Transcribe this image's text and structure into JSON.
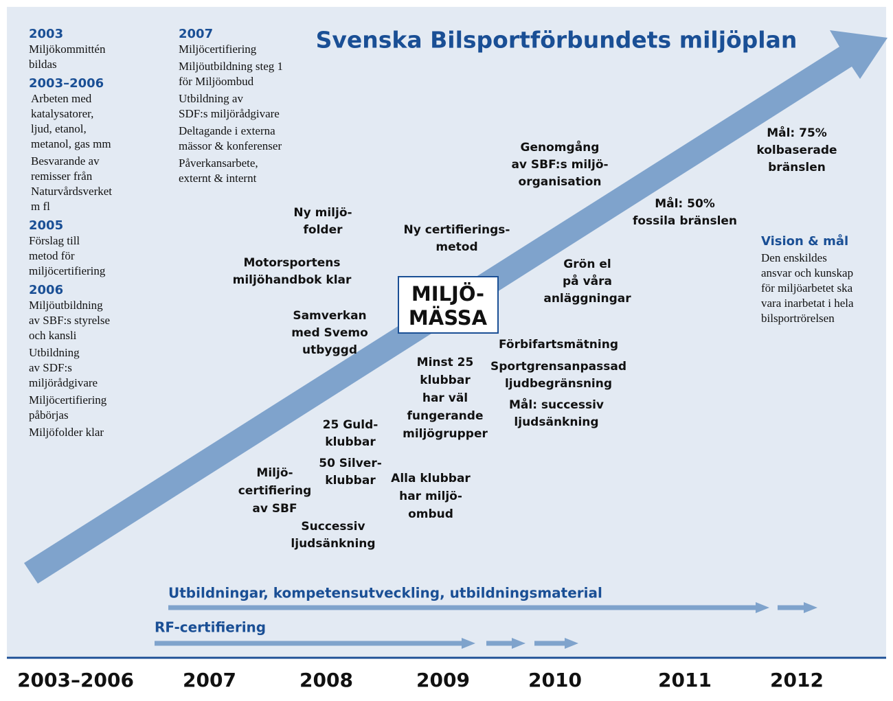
{
  "title": "Svenska Bilsportförbundets miljöplan",
  "left_column": [
    {
      "heading": "2003",
      "items": [
        [
          "Miljökommittén",
          "bildas"
        ]
      ]
    },
    {
      "heading": "2003–2006",
      "items": [
        [
          "Arbeten med",
          "katalysatorer,",
          "ljud, etanol,",
          "metanol, gas mm"
        ],
        [
          "Besvarande av",
          "remisser från",
          "Naturvårdsverket",
          "m fl"
        ]
      ]
    },
    {
      "heading": "2005",
      "items": [
        [
          "Förslag till",
          "metod för",
          "miljöcertifiering"
        ]
      ]
    },
    {
      "heading": "2006",
      "items": [
        [
          "Miljöutbildning",
          "av SBF:s styrelse",
          "och kansli"
        ],
        [
          "Utbildning",
          "av SDF:s",
          "miljörådgivare"
        ],
        [
          "Miljöcertifiering",
          "påbörjas"
        ],
        [
          "Miljöfolder klar"
        ]
      ]
    }
  ],
  "second_column": {
    "heading": "2007",
    "items": [
      [
        "Miljöcertifiering"
      ],
      [
        "Miljöutbildning steg 1",
        "för Miljöombud"
      ],
      [
        "Utbildning av",
        "SDF:s miljörådgivare"
      ],
      [
        "Deltagande i externa",
        "mässor & konferenser"
      ],
      [
        "Påverkansarbete,",
        "externt & internt"
      ]
    ]
  },
  "milestones": [
    [
      "Ny miljö-",
      "folder"
    ],
    [
      "Motorsportens",
      "miljöhandbok klar"
    ],
    [
      "Samverkan",
      "med Svemo",
      "utbyggd"
    ],
    [
      "Ny certifierings-",
      "metod"
    ],
    [
      "Genomgång",
      "av SBF:s miljö-",
      "organisation"
    ],
    [
      "Mål: 50%",
      "fossila bränslen"
    ],
    [
      "Mål: 75%",
      "kolbaserade",
      "bränslen"
    ],
    [
      "Grön el",
      "på våra",
      "anläggningar"
    ],
    [
      "Förbifartsmätning"
    ],
    [
      "Sportgrensanpassad",
      "ljudbegränsning"
    ],
    [
      "Mål: successiv",
      "ljudsänkning"
    ],
    [
      "Minst 25",
      "klubbar",
      "har väl",
      "fungerande",
      "miljögrupper"
    ],
    [
      "25 Guld-",
      "klubbar"
    ],
    [
      "50 Silver-",
      "klubbar"
    ],
    [
      "Miljö-",
      "certifiering",
      "av SBF"
    ],
    [
      "Alla klubbar",
      "har miljö-",
      "ombud"
    ],
    [
      "Successiv",
      "ljudsänkning"
    ]
  ],
  "center_box": [
    "MILJÖ-",
    "MÄSSA"
  ],
  "vision": {
    "heading": "Vision & mål",
    "lines": [
      "Den enskildes",
      "ansvar och kunskap",
      "för miljöarbetet ska",
      "vara inarbetat i hela",
      "bilsportrörelsen"
    ]
  },
  "tracks": [
    "Utbildningar, kompetensutveckling, utbildningsmaterial",
    "RF-certifiering"
  ],
  "years": [
    "2003–2006",
    "2007",
    "2008",
    "2009",
    "2010",
    "2011",
    "2012"
  ]
}
